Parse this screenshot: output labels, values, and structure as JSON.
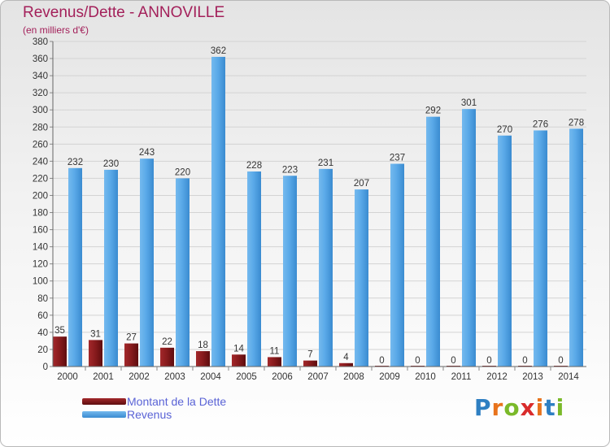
{
  "title": "Revenus/Dette - ANNOVILLE",
  "subtitle": "(en milliers d'€)",
  "legend": {
    "debt_label": "Montant de la Dette",
    "revenue_label": "Revenus"
  },
  "brand": {
    "letters": [
      "P",
      "r",
      "o",
      "x",
      "i",
      "t",
      "i"
    ],
    "colors": [
      "#2e7fc2",
      "#e8731c",
      "#7ab929",
      "#d92b2b",
      "#e8731c",
      "#2e7fc2",
      "#7ab929"
    ]
  },
  "colors": {
    "debt": "#7a1416",
    "revenue": "#4fa3e6",
    "title": "#a3205a",
    "legend_text": "#5a63d6"
  },
  "chart_data": {
    "type": "bar",
    "categories": [
      "2000",
      "2001",
      "2002",
      "2003",
      "2004",
      "2005",
      "2006",
      "2007",
      "2008",
      "2009",
      "2010",
      "2011",
      "2012",
      "2013",
      "2014"
    ],
    "series": [
      {
        "name": "Montant de la Dette",
        "values": [
          35,
          31,
          27,
          22,
          18,
          14,
          11,
          7,
          4,
          0,
          0,
          0,
          0,
          0,
          0
        ]
      },
      {
        "name": "Revenus",
        "values": [
          232,
          230,
          243,
          220,
          362,
          228,
          223,
          231,
          207,
          237,
          292,
          301,
          270,
          276,
          278
        ]
      }
    ],
    "ylim": [
      0,
      380
    ],
    "yticks": [
      0,
      20,
      40,
      60,
      80,
      100,
      120,
      140,
      160,
      180,
      200,
      220,
      240,
      260,
      280,
      300,
      320,
      340,
      360,
      380
    ],
    "grid": true,
    "legend_position": "bottom-left"
  }
}
